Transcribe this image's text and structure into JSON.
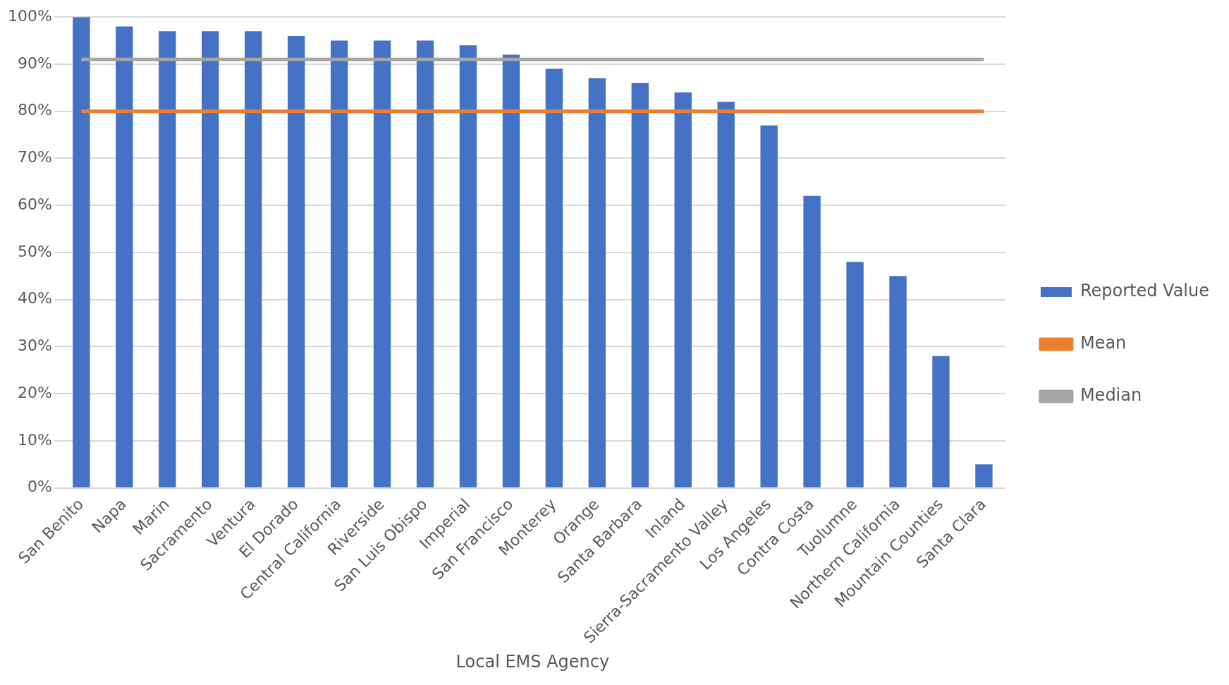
{
  "chart_data": {
    "type": "bar",
    "xlabel": "Local EMS Agency",
    "categories": [
      "San Benito",
      "Napa",
      "Marin",
      "Sacramento",
      "Ventura",
      "El Dorado",
      "Central California",
      "Riverside",
      "San Luis Obispo",
      "Imperial",
      "San Francisco",
      "Monterey",
      "Orange",
      "Santa Barbara",
      "Inland",
      "Sierra-Sacramento Valley",
      "Los Angeles",
      "Contra Costa",
      "Tuolumne",
      "Northern California",
      "Mountain Counties",
      "Santa Clara"
    ],
    "series": [
      {
        "name": "Reported Value",
        "color": "#4472c4",
        "values": [
          100,
          98,
          97,
          97,
          97,
          96,
          95,
          95,
          95,
          94,
          92,
          89,
          87,
          86,
          84,
          82,
          77,
          62,
          48,
          45,
          28,
          5
        ]
      },
      {
        "name": "Mean",
        "type": "line",
        "color": "#ed7d31",
        "values": [
          80,
          80,
          80,
          80,
          80,
          80,
          80,
          80,
          80,
          80,
          80,
          80,
          80,
          80,
          80,
          80,
          80,
          80,
          80,
          80,
          80,
          80
        ]
      },
      {
        "name": "Median",
        "type": "line",
        "color": "#a5a5a5",
        "values": [
          91,
          91,
          91,
          91,
          91,
          91,
          91,
          91,
          91,
          91,
          91,
          91,
          91,
          91,
          91,
          91,
          91,
          91,
          91,
          91,
          91,
          91
        ]
      }
    ],
    "ylim": [
      0,
      100
    ],
    "yticks": [
      {
        "value": 0,
        "label": "0%"
      },
      {
        "value": 10,
        "label": "10%"
      },
      {
        "value": 20,
        "label": "20%"
      },
      {
        "value": 30,
        "label": "30%"
      },
      {
        "value": 40,
        "label": "40%"
      },
      {
        "value": 50,
        "label": "50%"
      },
      {
        "value": 60,
        "label": "60%"
      },
      {
        "value": 70,
        "label": "70%"
      },
      {
        "value": 80,
        "label": "80%"
      },
      {
        "value": 90,
        "label": "90%"
      },
      {
        "value": 100,
        "label": "100%"
      }
    ],
    "grid": "y",
    "legend": "right",
    "marker": "none"
  }
}
